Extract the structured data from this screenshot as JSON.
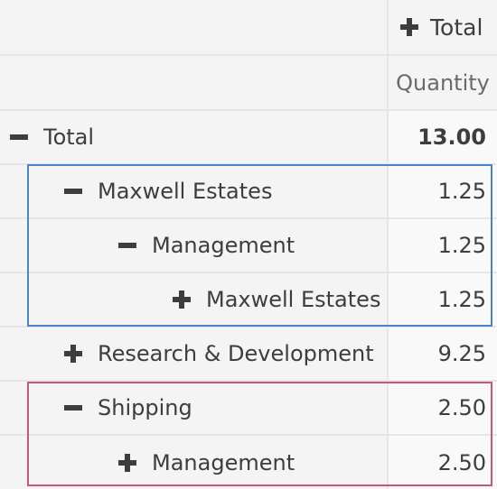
{
  "header": {
    "group_label": "Total",
    "measure_label": "Quantity"
  },
  "rows": [
    {
      "label": "Total",
      "value": "13.00",
      "expanded": true
    },
    {
      "label": "Maxwell Estates",
      "value": "1.25",
      "expanded": true
    },
    {
      "label": "Management",
      "value": "1.25",
      "expanded": true
    },
    {
      "label": "Maxwell Estates",
      "value": "1.25",
      "expanded": false
    },
    {
      "label": "Research & Development",
      "value": "9.25",
      "expanded": false
    },
    {
      "label": "Shipping",
      "value": "2.50",
      "expanded": true
    },
    {
      "label": "Management",
      "value": "2.50",
      "expanded": false
    }
  ],
  "colors": {
    "highlight_blue": "#4a86c5",
    "highlight_pink": "#c8567f"
  }
}
